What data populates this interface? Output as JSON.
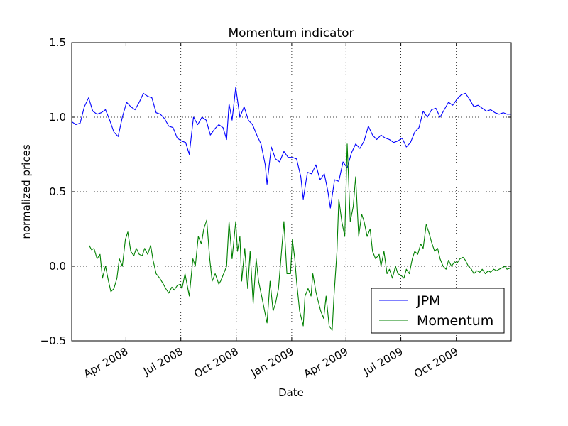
{
  "chart_data": {
    "type": "line",
    "title": "Momentum indicator",
    "xlabel": "Date",
    "ylabel": "normalized prices",
    "xlim": [
      "2008-01-02",
      "2009-12-31"
    ],
    "ylim": [
      -0.5,
      1.5
    ],
    "x_ticks": [
      {
        "date": "2008-04-01",
        "label": "Apr 2008"
      },
      {
        "date": "2008-07-01",
        "label": "Jul 2008"
      },
      {
        "date": "2008-10-01",
        "label": "Oct 2008"
      },
      {
        "date": "2009-01-01",
        "label": "Jan 2009"
      },
      {
        "date": "2009-04-01",
        "label": "Apr 2009"
      },
      {
        "date": "2009-07-01",
        "label": "Jul 2009"
      },
      {
        "date": "2009-10-01",
        "label": "Oct 2009"
      }
    ],
    "y_ticks": [
      {
        "value": -0.5,
        "label": "−0.5"
      },
      {
        "value": 0.0,
        "label": "0.0"
      },
      {
        "value": 0.5,
        "label": "0.5"
      },
      {
        "value": 1.0,
        "label": "1.0"
      },
      {
        "value": 1.5,
        "label": "1.5"
      }
    ],
    "grid": true,
    "legend_position": "lower-right",
    "series": [
      {
        "name": "JPM",
        "color": "#0000ff",
        "points": [
          [
            "2008-01-02",
            0.97
          ],
          [
            "2008-01-09",
            0.95
          ],
          [
            "2008-01-16",
            0.96
          ],
          [
            "2008-01-23",
            1.07
          ],
          [
            "2008-01-30",
            1.13
          ],
          [
            "2008-02-06",
            1.04
          ],
          [
            "2008-02-13",
            1.02
          ],
          [
            "2008-02-20",
            1.03
          ],
          [
            "2008-02-27",
            1.05
          ],
          [
            "2008-03-05",
            0.98
          ],
          [
            "2008-03-12",
            0.9
          ],
          [
            "2008-03-19",
            0.87
          ],
          [
            "2008-03-26",
            1.0
          ],
          [
            "2008-04-02",
            1.1
          ],
          [
            "2008-04-09",
            1.07
          ],
          [
            "2008-04-16",
            1.05
          ],
          [
            "2008-04-23",
            1.1
          ],
          [
            "2008-04-30",
            1.16
          ],
          [
            "2008-05-07",
            1.14
          ],
          [
            "2008-05-14",
            1.13
          ],
          [
            "2008-05-21",
            1.03
          ],
          [
            "2008-05-28",
            1.02
          ],
          [
            "2008-06-04",
            0.99
          ],
          [
            "2008-06-11",
            0.94
          ],
          [
            "2008-06-18",
            0.93
          ],
          [
            "2008-06-25",
            0.86
          ],
          [
            "2008-07-02",
            0.84
          ],
          [
            "2008-07-09",
            0.83
          ],
          [
            "2008-07-15",
            0.75
          ],
          [
            "2008-07-22",
            1.0
          ],
          [
            "2008-07-29",
            0.95
          ],
          [
            "2008-08-05",
            1.0
          ],
          [
            "2008-08-12",
            0.98
          ],
          [
            "2008-08-19",
            0.88
          ],
          [
            "2008-08-26",
            0.92
          ],
          [
            "2008-09-02",
            0.95
          ],
          [
            "2008-09-09",
            0.93
          ],
          [
            "2008-09-15",
            0.85
          ],
          [
            "2008-09-19",
            1.09
          ],
          [
            "2008-09-24",
            0.98
          ],
          [
            "2008-09-30",
            1.2
          ],
          [
            "2008-10-07",
            1.0
          ],
          [
            "2008-10-14",
            1.07
          ],
          [
            "2008-10-21",
            0.98
          ],
          [
            "2008-10-28",
            0.95
          ],
          [
            "2008-11-04",
            0.88
          ],
          [
            "2008-11-11",
            0.82
          ],
          [
            "2008-11-18",
            0.68
          ],
          [
            "2008-11-21",
            0.55
          ],
          [
            "2008-11-28",
            0.8
          ],
          [
            "2008-12-05",
            0.72
          ],
          [
            "2008-12-12",
            0.7
          ],
          [
            "2008-12-19",
            0.77
          ],
          [
            "2008-12-26",
            0.73
          ],
          [
            "2009-01-02",
            0.73
          ],
          [
            "2009-01-09",
            0.72
          ],
          [
            "2009-01-16",
            0.6
          ],
          [
            "2009-01-20",
            0.45
          ],
          [
            "2009-01-27",
            0.63
          ],
          [
            "2009-02-03",
            0.62
          ],
          [
            "2009-02-10",
            0.68
          ],
          [
            "2009-02-17",
            0.58
          ],
          [
            "2009-02-24",
            0.62
          ],
          [
            "2009-03-02",
            0.5
          ],
          [
            "2009-03-06",
            0.39
          ],
          [
            "2009-03-13",
            0.58
          ],
          [
            "2009-03-20",
            0.57
          ],
          [
            "2009-03-27",
            0.7
          ],
          [
            "2009-04-03",
            0.66
          ],
          [
            "2009-04-10",
            0.76
          ],
          [
            "2009-04-17",
            0.82
          ],
          [
            "2009-04-24",
            0.79
          ],
          [
            "2009-05-01",
            0.84
          ],
          [
            "2009-05-08",
            0.94
          ],
          [
            "2009-05-15",
            0.88
          ],
          [
            "2009-05-22",
            0.85
          ],
          [
            "2009-05-29",
            0.88
          ],
          [
            "2009-06-05",
            0.86
          ],
          [
            "2009-06-12",
            0.85
          ],
          [
            "2009-06-19",
            0.83
          ],
          [
            "2009-06-26",
            0.84
          ],
          [
            "2009-07-03",
            0.86
          ],
          [
            "2009-07-10",
            0.8
          ],
          [
            "2009-07-17",
            0.83
          ],
          [
            "2009-07-24",
            0.9
          ],
          [
            "2009-07-31",
            0.93
          ],
          [
            "2009-08-07",
            1.04
          ],
          [
            "2009-08-14",
            1.0
          ],
          [
            "2009-08-21",
            1.05
          ],
          [
            "2009-08-28",
            1.06
          ],
          [
            "2009-09-04",
            1.0
          ],
          [
            "2009-09-11",
            1.05
          ],
          [
            "2009-09-18",
            1.1
          ],
          [
            "2009-09-25",
            1.08
          ],
          [
            "2009-10-02",
            1.12
          ],
          [
            "2009-10-09",
            1.15
          ],
          [
            "2009-10-16",
            1.16
          ],
          [
            "2009-10-23",
            1.12
          ],
          [
            "2009-10-30",
            1.07
          ],
          [
            "2009-11-06",
            1.08
          ],
          [
            "2009-11-13",
            1.06
          ],
          [
            "2009-11-20",
            1.04
          ],
          [
            "2009-11-27",
            1.05
          ],
          [
            "2009-12-04",
            1.03
          ],
          [
            "2009-12-11",
            1.02
          ],
          [
            "2009-12-18",
            1.03
          ],
          [
            "2009-12-24",
            1.02
          ],
          [
            "2009-12-31",
            1.02
          ]
        ]
      },
      {
        "name": "Momentum",
        "color": "#008000",
        "points": [
          [
            "2008-01-31",
            0.14
          ],
          [
            "2008-02-04",
            0.11
          ],
          [
            "2008-02-08",
            0.12
          ],
          [
            "2008-02-13",
            0.05
          ],
          [
            "2008-02-18",
            0.08
          ],
          [
            "2008-02-22",
            -0.08
          ],
          [
            "2008-02-27",
            0.0
          ],
          [
            "2008-03-03",
            -0.1
          ],
          [
            "2008-03-07",
            -0.17
          ],
          [
            "2008-03-12",
            -0.15
          ],
          [
            "2008-03-17",
            -0.08
          ],
          [
            "2008-03-21",
            0.05
          ],
          [
            "2008-03-26",
            0.0
          ],
          [
            "2008-03-31",
            0.18
          ],
          [
            "2008-04-04",
            0.23
          ],
          [
            "2008-04-09",
            0.1
          ],
          [
            "2008-04-14",
            0.07
          ],
          [
            "2008-04-18",
            0.12
          ],
          [
            "2008-04-23",
            0.08
          ],
          [
            "2008-04-28",
            0.07
          ],
          [
            "2008-05-02",
            0.12
          ],
          [
            "2008-05-07",
            0.08
          ],
          [
            "2008-05-12",
            0.14
          ],
          [
            "2008-05-16",
            0.04
          ],
          [
            "2008-05-21",
            -0.05
          ],
          [
            "2008-05-27",
            -0.08
          ],
          [
            "2008-06-02",
            -0.12
          ],
          [
            "2008-06-06",
            -0.15
          ],
          [
            "2008-06-11",
            -0.18
          ],
          [
            "2008-06-16",
            -0.14
          ],
          [
            "2008-06-20",
            -0.16
          ],
          [
            "2008-06-25",
            -0.13
          ],
          [
            "2008-06-30",
            -0.12
          ],
          [
            "2008-07-03",
            -0.15
          ],
          [
            "2008-07-08",
            -0.05
          ],
          [
            "2008-07-15",
            -0.2
          ],
          [
            "2008-07-21",
            0.05
          ],
          [
            "2008-07-25",
            0.0
          ],
          [
            "2008-07-30",
            0.2
          ],
          [
            "2008-08-04",
            0.15
          ],
          [
            "2008-08-08",
            0.25
          ],
          [
            "2008-08-13",
            0.31
          ],
          [
            "2008-08-18",
            0.05
          ],
          [
            "2008-08-22",
            -0.1
          ],
          [
            "2008-08-27",
            -0.05
          ],
          [
            "2008-09-02",
            -0.12
          ],
          [
            "2008-09-05",
            -0.1
          ],
          [
            "2008-09-10",
            -0.05
          ],
          [
            "2008-09-15",
            0.0
          ],
          [
            "2008-09-19",
            0.3
          ],
          [
            "2008-09-24",
            0.05
          ],
          [
            "2008-09-30",
            0.3
          ],
          [
            "2008-10-03",
            0.1
          ],
          [
            "2008-10-07",
            0.2
          ],
          [
            "2008-10-10",
            -0.1
          ],
          [
            "2008-10-15",
            0.12
          ],
          [
            "2008-10-20",
            -0.15
          ],
          [
            "2008-10-24",
            0.1
          ],
          [
            "2008-10-29",
            -0.25
          ],
          [
            "2008-11-03",
            0.05
          ],
          [
            "2008-11-07",
            -0.1
          ],
          [
            "2008-11-12",
            -0.2
          ],
          [
            "2008-11-17",
            -0.3
          ],
          [
            "2008-11-21",
            -0.38
          ],
          [
            "2008-11-26",
            -0.1
          ],
          [
            "2008-12-01",
            -0.3
          ],
          [
            "2008-12-05",
            -0.25
          ],
          [
            "2008-12-10",
            -0.15
          ],
          [
            "2008-12-15",
            0.1
          ],
          [
            "2008-12-19",
            0.3
          ],
          [
            "2008-12-24",
            -0.05
          ],
          [
            "2008-12-30",
            -0.05
          ],
          [
            "2009-01-02",
            0.18
          ],
          [
            "2009-01-06",
            0.05
          ],
          [
            "2009-01-09",
            -0.1
          ],
          [
            "2009-01-14",
            -0.3
          ],
          [
            "2009-01-20",
            -0.4
          ],
          [
            "2009-01-23",
            -0.2
          ],
          [
            "2009-01-28",
            -0.15
          ],
          [
            "2009-02-02",
            -0.2
          ],
          [
            "2009-02-05",
            -0.05
          ],
          [
            "2009-02-10",
            -0.17
          ],
          [
            "2009-02-13",
            -0.22
          ],
          [
            "2009-02-18",
            -0.3
          ],
          [
            "2009-02-23",
            -0.35
          ],
          [
            "2009-02-27",
            -0.2
          ],
          [
            "2009-03-04",
            -0.4
          ],
          [
            "2009-03-09",
            -0.43
          ],
          [
            "2009-03-12",
            -0.2
          ],
          [
            "2009-03-17",
            0.1
          ],
          [
            "2009-03-20",
            0.45
          ],
          [
            "2009-03-25",
            0.3
          ],
          [
            "2009-03-30",
            0.2
          ],
          [
            "2009-04-03",
            0.82
          ],
          [
            "2009-04-08",
            0.3
          ],
          [
            "2009-04-13",
            0.4
          ],
          [
            "2009-04-17",
            0.6
          ],
          [
            "2009-04-22",
            0.2
          ],
          [
            "2009-04-27",
            0.35
          ],
          [
            "2009-05-01",
            0.3
          ],
          [
            "2009-05-06",
            0.2
          ],
          [
            "2009-05-11",
            0.25
          ],
          [
            "2009-05-15",
            0.1
          ],
          [
            "2009-05-20",
            0.05
          ],
          [
            "2009-05-26",
            0.08
          ],
          [
            "2009-05-29",
            0.0
          ],
          [
            "2009-06-03",
            0.1
          ],
          [
            "2009-06-08",
            -0.05
          ],
          [
            "2009-06-12",
            -0.02
          ],
          [
            "2009-06-17",
            -0.08
          ],
          [
            "2009-06-22",
            0.0
          ],
          [
            "2009-06-26",
            -0.05
          ],
          [
            "2009-07-01",
            -0.06
          ],
          [
            "2009-07-06",
            -0.08
          ],
          [
            "2009-07-10",
            -0.02
          ],
          [
            "2009-07-15",
            -0.05
          ],
          [
            "2009-07-20",
            0.05
          ],
          [
            "2009-07-24",
            0.1
          ],
          [
            "2009-07-29",
            0.08
          ],
          [
            "2009-08-03",
            0.15
          ],
          [
            "2009-08-07",
            0.12
          ],
          [
            "2009-08-12",
            0.28
          ],
          [
            "2009-08-17",
            0.22
          ],
          [
            "2009-08-21",
            0.16
          ],
          [
            "2009-08-26",
            0.1
          ],
          [
            "2009-08-31",
            0.12
          ],
          [
            "2009-09-04",
            0.05
          ],
          [
            "2009-09-09",
            0.0
          ],
          [
            "2009-09-14",
            -0.02
          ],
          [
            "2009-09-18",
            0.04
          ],
          [
            "2009-09-23",
            0.0
          ],
          [
            "2009-09-28",
            0.03
          ],
          [
            "2009-10-02",
            0.02
          ],
          [
            "2009-10-07",
            0.05
          ],
          [
            "2009-10-12",
            0.06
          ],
          [
            "2009-10-16",
            0.04
          ],
          [
            "2009-10-21",
            0.0
          ],
          [
            "2009-10-26",
            -0.02
          ],
          [
            "2009-10-30",
            -0.05
          ],
          [
            "2009-11-04",
            -0.03
          ],
          [
            "2009-11-09",
            -0.04
          ],
          [
            "2009-11-13",
            -0.02
          ],
          [
            "2009-11-18",
            -0.05
          ],
          [
            "2009-11-23",
            -0.03
          ],
          [
            "2009-11-27",
            -0.04
          ],
          [
            "2009-12-02",
            -0.02
          ],
          [
            "2009-12-07",
            -0.03
          ],
          [
            "2009-12-11",
            -0.02
          ],
          [
            "2009-12-16",
            -0.01
          ],
          [
            "2009-12-21",
            0.0
          ],
          [
            "2009-12-24",
            -0.02
          ],
          [
            "2009-12-31",
            -0.01
          ]
        ]
      }
    ]
  }
}
